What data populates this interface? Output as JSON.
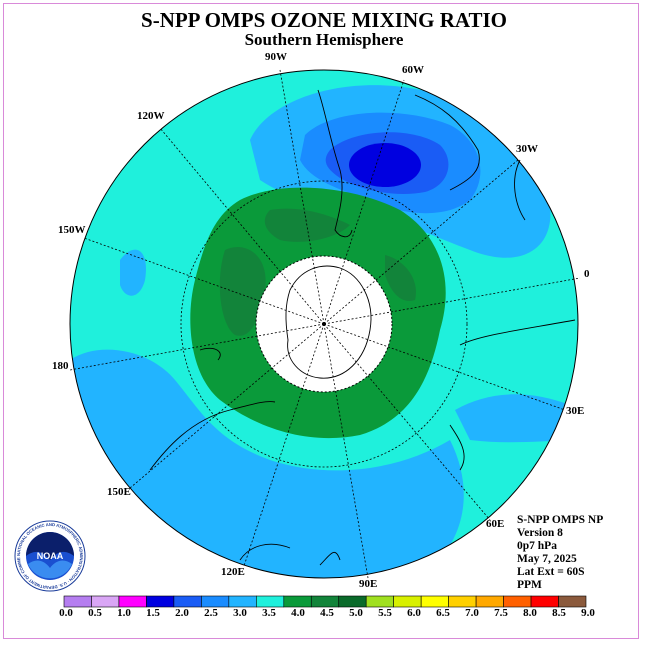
{
  "title": "S-NPP OMPS OZONE MIXING RATIO",
  "subtitle": "Southern Hemisphere",
  "longitudes": [
    "90W",
    "60W",
    "30W",
    "120W",
    "150W",
    "0",
    "180",
    "30E",
    "150E",
    "60E",
    "120E",
    "90E"
  ],
  "info": [
    "S-NPP OMPS NP",
    "Version 8",
    "0p7 hPa",
    "May 7, 2025",
    "Lat Ext = 60S",
    "PPM"
  ],
  "logo": {
    "text": "NOAA",
    "ring_text": "NATIONAL OCEANIC AND ATMOSPHERIC ADMINISTRATION · U.S. DEPARTMENT OF COMMERCE"
  },
  "colorbar": {
    "labels": [
      "0.0",
      "0.5",
      "1.0",
      "1.5",
      "2.0",
      "2.5",
      "3.0",
      "3.5",
      "4.0",
      "4.5",
      "5.0",
      "5.5",
      "6.0",
      "6.5",
      "7.0",
      "7.5",
      "8.0",
      "8.5",
      "9.0"
    ],
    "colors": [
      "#b57ef0",
      "#d9a6f5",
      "#ff00ff",
      "#0000e0",
      "#1a5cf5",
      "#1a8cff",
      "#22b4ff",
      "#1ff0dc",
      "#0a9a3a",
      "#12843a",
      "#0a6a2a",
      "#a0e020",
      "#d8f000",
      "#ffff00",
      "#ffd000",
      "#ffa800",
      "#ff6000",
      "#ff0000",
      "#8b5a3c"
    ]
  }
}
